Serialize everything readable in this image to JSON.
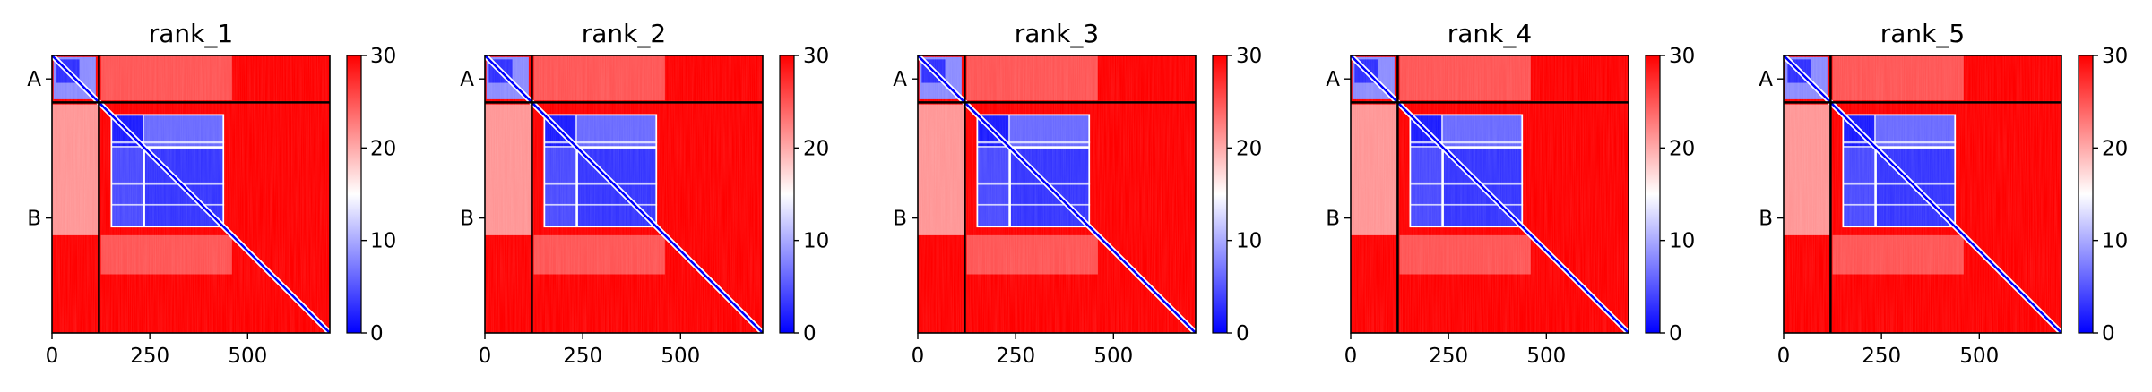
{
  "figure": {
    "background": "#ffffff"
  },
  "colormap": {
    "name": "bwr",
    "low_color": "#0000ff",
    "mid_color": "#ffffff",
    "high_color": "#ff0000",
    "vmin": 0,
    "vmax": 30
  },
  "chart_data": [
    {
      "type": "heatmap",
      "title": "rank_1",
      "xlabel": "",
      "ylabel": "",
      "xlim": [
        0,
        710
      ],
      "ylim": [
        0,
        710
      ],
      "x_ticks": [
        0,
        250,
        500
      ],
      "x_tick_labels": [
        "0",
        "250",
        "500"
      ],
      "y_tick_labels": [
        {
          "label": "A",
          "position": 60
        },
        {
          "label": "B",
          "position": 416
        }
      ],
      "chain_boundary": 120,
      "colorbar": {
        "ticks": [
          0,
          10,
          20,
          30
        ],
        "tick_labels": [
          "0",
          "10",
          "20",
          "30"
        ],
        "range": [
          0,
          30
        ]
      }
    },
    {
      "type": "heatmap",
      "title": "rank_2",
      "xlabel": "",
      "ylabel": "",
      "xlim": [
        0,
        710
      ],
      "ylim": [
        0,
        710
      ],
      "x_ticks": [
        0,
        250,
        500
      ],
      "x_tick_labels": [
        "0",
        "250",
        "500"
      ],
      "y_tick_labels": [
        {
          "label": "A",
          "position": 60
        },
        {
          "label": "B",
          "position": 416
        }
      ],
      "chain_boundary": 120,
      "colorbar": {
        "ticks": [
          0,
          10,
          20,
          30
        ],
        "tick_labels": [
          "0",
          "10",
          "20",
          "30"
        ],
        "range": [
          0,
          30
        ]
      }
    },
    {
      "type": "heatmap",
      "title": "rank_3",
      "xlabel": "",
      "ylabel": "",
      "xlim": [
        0,
        710
      ],
      "ylim": [
        0,
        710
      ],
      "x_ticks": [
        0,
        250,
        500
      ],
      "x_tick_labels": [
        "0",
        "250",
        "500"
      ],
      "y_tick_labels": [
        {
          "label": "A",
          "position": 60
        },
        {
          "label": "B",
          "position": 416
        }
      ],
      "chain_boundary": 120,
      "colorbar": {
        "ticks": [
          0,
          10,
          20,
          30
        ],
        "tick_labels": [
          "0",
          "10",
          "20",
          "30"
        ],
        "range": [
          0,
          30
        ]
      }
    },
    {
      "type": "heatmap",
      "title": "rank_4",
      "xlabel": "",
      "ylabel": "",
      "xlim": [
        0,
        710
      ],
      "ylim": [
        0,
        710
      ],
      "x_ticks": [
        0,
        250,
        500
      ],
      "x_tick_labels": [
        "0",
        "250",
        "500"
      ],
      "y_tick_labels": [
        {
          "label": "A",
          "position": 60
        },
        {
          "label": "B",
          "position": 416
        }
      ],
      "chain_boundary": 120,
      "colorbar": {
        "ticks": [
          0,
          10,
          20,
          30
        ],
        "tick_labels": [
          "0",
          "10",
          "20",
          "30"
        ],
        "range": [
          0,
          30
        ]
      }
    },
    {
      "type": "heatmap",
      "title": "rank_5",
      "xlabel": "",
      "ylabel": "",
      "xlim": [
        0,
        710
      ],
      "ylim": [
        0,
        710
      ],
      "x_ticks": [
        0,
        250,
        500
      ],
      "x_tick_labels": [
        "0",
        "250",
        "500"
      ],
      "y_tick_labels": [
        {
          "label": "A",
          "position": 60
        },
        {
          "label": "B",
          "position": 416
        }
      ],
      "chain_boundary": 120,
      "colorbar": {
        "ticks": [
          0,
          10,
          20,
          30
        ],
        "tick_labels": [
          "0",
          "10",
          "20",
          "30"
        ],
        "range": [
          0,
          30
        ]
      }
    }
  ]
}
